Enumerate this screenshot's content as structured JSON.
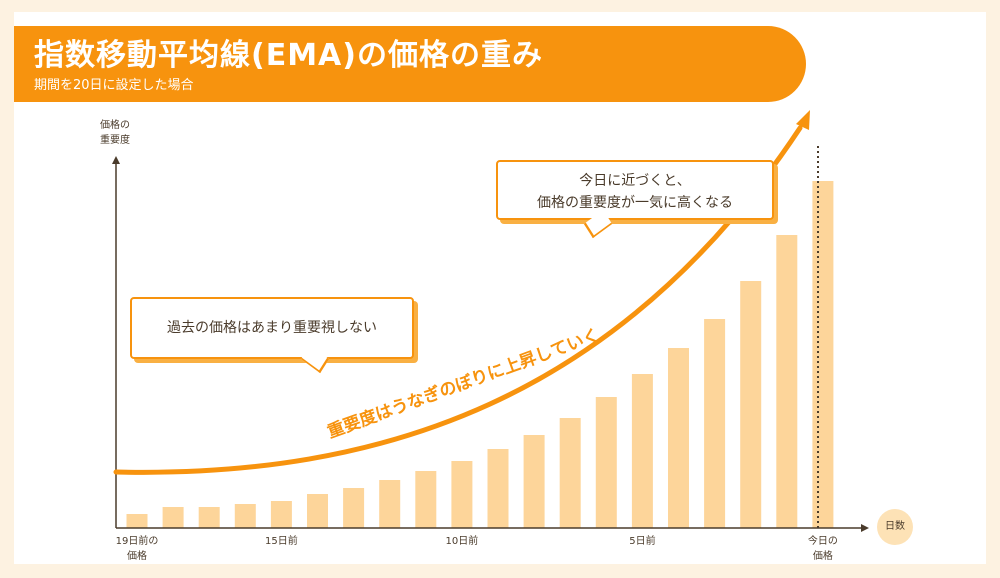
{
  "header": {
    "title": "指数移動平均線(EMA)の価格の重み",
    "subtitle": "期間を20日に設定した場合"
  },
  "colors": {
    "accent": "#f7930e",
    "bar": "#fdd59a",
    "background": "#fdf2e1",
    "text": "#4a3b2b"
  },
  "callouts": {
    "left": "過去の価格はあまり重要視しない",
    "right_line1": "今日に近づくと、",
    "right_line2": "価格の重要度が一気に高くなる"
  },
  "curve_label": "重要度はうなぎのぼりに上昇していく",
  "chart_data": {
    "type": "bar",
    "title": "指数移動平均線(EMA)の価格の重み",
    "subtitle": "期間を20日に設定した場合",
    "ylabel_line1": "価格の",
    "ylabel_line2": "重要度",
    "xlabel": "日数",
    "tick_labels": [
      {
        "index": 0,
        "line1": "19日前の",
        "line2": "価格"
      },
      {
        "index": 4,
        "line1": "15日前",
        "line2": ""
      },
      {
        "index": 9,
        "line1": "10日前",
        "line2": ""
      },
      {
        "index": 14,
        "line1": "5日前",
        "line2": ""
      },
      {
        "index": 19,
        "line1": "今日の",
        "line2": "価格"
      }
    ],
    "values": [
      14,
      21,
      21,
      24,
      27,
      34,
      40,
      48,
      57,
      67,
      79,
      93,
      110,
      131,
      154,
      180,
      209,
      247,
      293,
      347
    ],
    "ylim": [
      0,
      400
    ],
    "grid": false,
    "today_marker": true
  }
}
